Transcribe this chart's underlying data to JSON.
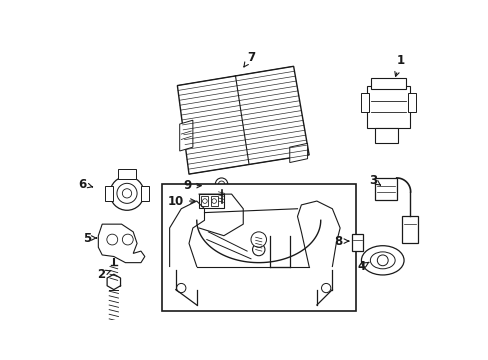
{
  "background_color": "#ffffff",
  "fig_width": 4.89,
  "fig_height": 3.6,
  "dpi": 100,
  "line_color": "#1a1a1a",
  "text_color": "#1a1a1a",
  "label_fontsize": 8.5
}
